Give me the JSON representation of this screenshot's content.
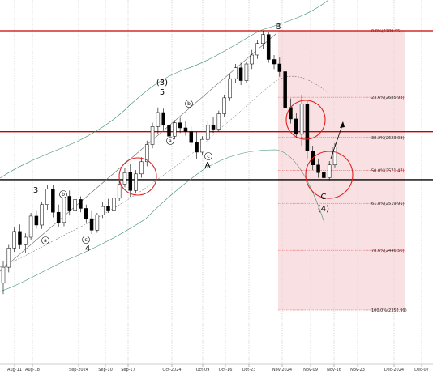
{
  "chart_data": {
    "type": "candlestick",
    "x_ticks": [
      "Aug-11",
      "Aug-18",
      "Sep-2024",
      "Sep-10",
      "Sep-17",
      "Oct-2024",
      "Oct-09",
      "Oct-16",
      "Oct-23",
      "Nov-2024",
      "Nov-09",
      "Nov-16",
      "Nov-23",
      "Dec-2024",
      "Dec-07"
    ],
    "fib_levels": [
      {
        "label": "0.0%(2789.95)",
        "value": 2789.95
      },
      {
        "label": "23.6%(2685.93)",
        "value": 2685.93
      },
      {
        "label": "38.2%(2623.03)",
        "value": 2623.03
      },
      {
        "label": "50.0%(2571.47)",
        "value": 2571.47
      },
      {
        "label": "61.8%(2519.91)",
        "value": 2519.91
      },
      {
        "label": "78.6%(2446.50)",
        "value": 2446.5
      },
      {
        "label": "100.0%(2352.99)",
        "value": 2352.99
      }
    ],
    "horizontal_lines": [
      {
        "value": 2789.95,
        "color": "#cc0000"
      },
      {
        "value": 2632.0,
        "color": "#cc0000"
      },
      {
        "value": 2557.0,
        "color": "#000000"
      }
    ],
    "wave_labels": [
      {
        "text": "3",
        "style": "plain"
      },
      {
        "text": "b",
        "style": "circled"
      },
      {
        "text": "a",
        "style": "circled"
      },
      {
        "text": "c",
        "style": "circled"
      },
      {
        "text": "4",
        "style": "plain"
      },
      {
        "text": "(3)",
        "style": "plain"
      },
      {
        "text": "5",
        "style": "plain"
      },
      {
        "text": "b",
        "style": "circled"
      },
      {
        "text": "a",
        "style": "circled"
      },
      {
        "text": "c",
        "style": "circled"
      },
      {
        "text": "A",
        "style": "plain"
      },
      {
        "text": "B",
        "style": "plain"
      },
      {
        "text": "C",
        "style": "plain"
      },
      {
        "text": "(4)",
        "style": "plain"
      }
    ],
    "candles": [
      {
        "o": 2395,
        "h": 2430,
        "l": 2378,
        "c": 2420
      },
      {
        "o": 2420,
        "h": 2455,
        "l": 2412,
        "c": 2450
      },
      {
        "o": 2450,
        "h": 2482,
        "l": 2444,
        "c": 2476
      },
      {
        "o": 2476,
        "h": 2487,
        "l": 2448,
        "c": 2455
      },
      {
        "o": 2455,
        "h": 2473,
        "l": 2443,
        "c": 2467
      },
      {
        "o": 2467,
        "h": 2505,
        "l": 2462,
        "c": 2500
      },
      {
        "o": 2500,
        "h": 2508,
        "l": 2480,
        "c": 2486
      },
      {
        "o": 2486,
        "h": 2522,
        "l": 2480,
        "c": 2518
      },
      {
        "o": 2518,
        "h": 2548,
        "l": 2510,
        "c": 2542
      },
      {
        "o": 2542,
        "h": 2549,
        "l": 2498,
        "c": 2506
      },
      {
        "o": 2506,
        "h": 2518,
        "l": 2483,
        "c": 2490
      },
      {
        "o": 2490,
        "h": 2535,
        "l": 2484,
        "c": 2531
      },
      {
        "o": 2531,
        "h": 2540,
        "l": 2501,
        "c": 2508
      },
      {
        "o": 2508,
        "h": 2532,
        "l": 2500,
        "c": 2526
      },
      {
        "o": 2526,
        "h": 2531,
        "l": 2506,
        "c": 2512
      },
      {
        "o": 2512,
        "h": 2518,
        "l": 2490,
        "c": 2496
      },
      {
        "o": 2496,
        "h": 2508,
        "l": 2472,
        "c": 2478
      },
      {
        "o": 2478,
        "h": 2505,
        "l": 2474,
        "c": 2502
      },
      {
        "o": 2502,
        "h": 2522,
        "l": 2497,
        "c": 2515
      },
      {
        "o": 2515,
        "h": 2527,
        "l": 2505,
        "c": 2508
      },
      {
        "o": 2508,
        "h": 2532,
        "l": 2504,
        "c": 2528
      },
      {
        "o": 2528,
        "h": 2555,
        "l": 2524,
        "c": 2550
      },
      {
        "o": 2550,
        "h": 2575,
        "l": 2545,
        "c": 2568
      },
      {
        "o": 2568,
        "h": 2582,
        "l": 2530,
        "c": 2540
      },
      {
        "o": 2540,
        "h": 2572,
        "l": 2536,
        "c": 2566
      },
      {
        "o": 2566,
        "h": 2592,
        "l": 2560,
        "c": 2585
      },
      {
        "o": 2585,
        "h": 2618,
        "l": 2578,
        "c": 2612
      },
      {
        "o": 2612,
        "h": 2646,
        "l": 2606,
        "c": 2640
      },
      {
        "o": 2640,
        "h": 2670,
        "l": 2628,
        "c": 2662
      },
      {
        "o": 2662,
        "h": 2668,
        "l": 2635,
        "c": 2642
      },
      {
        "o": 2642,
        "h": 2656,
        "l": 2620,
        "c": 2625
      },
      {
        "o": 2625,
        "h": 2650,
        "l": 2620,
        "c": 2646
      },
      {
        "o": 2646,
        "h": 2654,
        "l": 2630,
        "c": 2638
      },
      {
        "o": 2638,
        "h": 2648,
        "l": 2626,
        "c": 2632
      },
      {
        "o": 2632,
        "h": 2640,
        "l": 2610,
        "c": 2615
      },
      {
        "o": 2615,
        "h": 2632,
        "l": 2590,
        "c": 2600
      },
      {
        "o": 2600,
        "h": 2625,
        "l": 2596,
        "c": 2620
      },
      {
        "o": 2620,
        "h": 2648,
        "l": 2615,
        "c": 2642
      },
      {
        "o": 2642,
        "h": 2655,
        "l": 2630,
        "c": 2636
      },
      {
        "o": 2636,
        "h": 2665,
        "l": 2632,
        "c": 2660
      },
      {
        "o": 2660,
        "h": 2690,
        "l": 2655,
        "c": 2685
      },
      {
        "o": 2685,
        "h": 2722,
        "l": 2680,
        "c": 2715
      },
      {
        "o": 2715,
        "h": 2738,
        "l": 2708,
        "c": 2732
      },
      {
        "o": 2732,
        "h": 2740,
        "l": 2705,
        "c": 2712
      },
      {
        "o": 2712,
        "h": 2742,
        "l": 2708,
        "c": 2738
      },
      {
        "o": 2738,
        "h": 2760,
        "l": 2730,
        "c": 2752
      },
      {
        "o": 2752,
        "h": 2775,
        "l": 2746,
        "c": 2770
      },
      {
        "o": 2770,
        "h": 2790,
        "l": 2762,
        "c": 2784
      },
      {
        "o": 2784,
        "h": 2788,
        "l": 2740,
        "c": 2745
      },
      {
        "o": 2745,
        "h": 2752,
        "l": 2730,
        "c": 2738
      },
      {
        "o": 2738,
        "h": 2748,
        "l": 2718,
        "c": 2726
      },
      {
        "o": 2726,
        "h": 2735,
        "l": 2665,
        "c": 2670
      },
      {
        "o": 2670,
        "h": 2684,
        "l": 2645,
        "c": 2652
      },
      {
        "o": 2652,
        "h": 2662,
        "l": 2622,
        "c": 2628
      },
      {
        "o": 2628,
        "h": 2690,
        "l": 2610,
        "c": 2675
      },
      {
        "o": 2675,
        "h": 2680,
        "l": 2590,
        "c": 2602
      },
      {
        "o": 2602,
        "h": 2610,
        "l": 2572,
        "c": 2580
      },
      {
        "o": 2580,
        "h": 2590,
        "l": 2560,
        "c": 2568
      },
      {
        "o": 2568,
        "h": 2575,
        "l": 2550,
        "c": 2560
      },
      {
        "o": 2560,
        "h": 2586,
        "l": 2556,
        "c": 2580
      },
      {
        "o": 2580,
        "h": 2614,
        "l": 2576,
        "c": 2608
      }
    ],
    "y_range": [
      2352.99,
      2789.95
    ]
  }
}
